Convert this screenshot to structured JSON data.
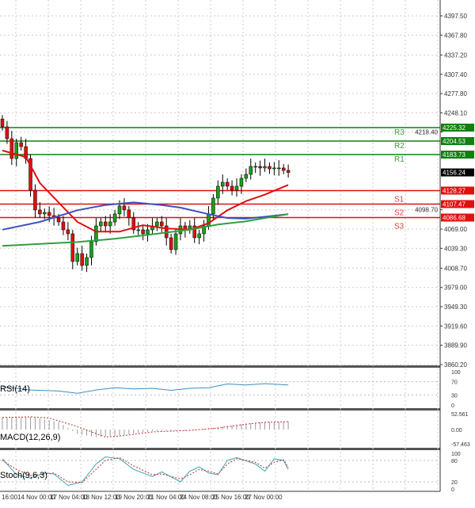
{
  "chart_data": {
    "type": "candlestick",
    "timeframe_labels": [
      "16:00",
      "14 Nov 00:00",
      "17 Nov 04:00",
      "18 Nov 12:00",
      "19 Nov 20:00",
      "21 Nov 04:00",
      "24 Nov 08:00",
      "25 Nov 16:00",
      "27 Nov 00:00"
    ],
    "price_ticks": [
      "4397.50",
      "4367.80",
      "4337.20",
      "4307.40",
      "4277.80",
      "4248.10",
      "4218.40",
      "4098.70",
      "4069.00",
      "4039.30",
      "4008.70",
      "3979.00",
      "3949.30",
      "3919.60",
      "3889.90",
      "3860.20"
    ],
    "ylim": [
      3860.2,
      4397.5
    ],
    "grid": true,
    "closes": [
      4226.6,
      4208.2,
      4177.7,
      4202.1,
      4196.0,
      4177.7,
      4128.9,
      4098.4,
      4092.3,
      4094.7,
      4089.8,
      4086.2,
      4080.0,
      4067.8,
      4061.7,
      4019.0,
      4031.2,
      4012.9,
      4025.1,
      4049.5,
      4073.9,
      4080.0,
      4073.9,
      4080.0,
      4092.3,
      4104.5,
      4098.4,
      4086.2,
      4067.8,
      4067.8,
      4061.7,
      4067.8,
      4073.9,
      4080.0,
      4073.9,
      4055.6,
      4037.3,
      4061.7,
      4073.9,
      4067.8,
      4073.9,
      4055.6,
      4061.7,
      4073.9,
      4092.3,
      4116.7,
      4135.0,
      4141.1,
      4135.0,
      4128.9,
      4135.0,
      4147.2,
      4153.3,
      4165.5,
      4165.5,
      4163.1,
      4165.5,
      4161.8,
      4163.1,
      4163.1,
      4159.4,
      4156.24
    ],
    "moving_averages": [
      {
        "color": "#e01010",
        "points": [
          [
            0,
            4190
          ],
          [
            5,
            4180
          ],
          [
            8,
            4140
          ],
          [
            12,
            4110
          ],
          [
            16,
            4080
          ],
          [
            20,
            4065
          ],
          [
            25,
            4065
          ],
          [
            30,
            4075
          ],
          [
            35,
            4070
          ],
          [
            40,
            4068
          ],
          [
            44,
            4078
          ],
          [
            48,
            4098
          ],
          [
            52,
            4112
          ],
          [
            56,
            4122
          ],
          [
            61,
            4137
          ]
        ]
      },
      {
        "color": "#4050c0",
        "points": [
          [
            0,
            4068
          ],
          [
            8,
            4080
          ],
          [
            16,
            4098
          ],
          [
            22,
            4106
          ],
          [
            28,
            4110
          ],
          [
            34,
            4106
          ],
          [
            38,
            4102
          ],
          [
            44,
            4092
          ],
          [
            48,
            4086
          ],
          [
            52,
            4085
          ],
          [
            56,
            4088
          ],
          [
            61,
            4092
          ]
        ]
      },
      {
        "color": "#30a040",
        "points": [
          [
            0,
            4043
          ],
          [
            8,
            4046
          ],
          [
            16,
            4049
          ],
          [
            24,
            4054
          ],
          [
            32,
            4061
          ],
          [
            40,
            4068
          ],
          [
            46,
            4076
          ],
          [
            52,
            4081
          ],
          [
            56,
            4086
          ],
          [
            61,
            4092
          ]
        ]
      }
    ],
    "levels": [
      {
        "name": "R3",
        "value": "4225.32",
        "color": "#108010"
      },
      {
        "name": "R2",
        "value": "4204.53",
        "color": "#108010"
      },
      {
        "name": "R1",
        "value": "4183.73",
        "color": "#108010"
      },
      {
        "name": "S1",
        "value": "4128.27",
        "color": "#e01010"
      },
      {
        "name": "S2",
        "value": "4107.47",
        "color": "#e01010"
      },
      {
        "name": "S3",
        "value": "4086.68",
        "color": "#e01010"
      }
    ],
    "current_price": "4156.24",
    "bull_color": "#18a018",
    "bear_color": "#e01010",
    "rsi": {
      "label": "RSI(14)",
      "ticks": [
        "100",
        "70",
        "30",
        "0"
      ],
      "color": "#3a8fc0",
      "points": [
        [
          0,
          55
        ],
        [
          6,
          45
        ],
        [
          12,
          42
        ],
        [
          16,
          35
        ],
        [
          20,
          45
        ],
        [
          24,
          52
        ],
        [
          28,
          48
        ],
        [
          32,
          50
        ],
        [
          36,
          44
        ],
        [
          40,
          50
        ],
        [
          44,
          52
        ],
        [
          48,
          63
        ],
        [
          52,
          60
        ],
        [
          56,
          64
        ],
        [
          61,
          60
        ]
      ]
    },
    "macd": {
      "label": "MACD(12,26,9)",
      "ticks": [
        "52.561",
        "0.00",
        "-57.463"
      ],
      "histogram": [
        [
          0,
          40
        ],
        [
          6,
          42
        ],
        [
          12,
          25
        ],
        [
          16,
          -15
        ],
        [
          20,
          -25
        ],
        [
          26,
          -18
        ],
        [
          32,
          -5
        ],
        [
          40,
          -3
        ],
        [
          46,
          8
        ],
        [
          52,
          20
        ],
        [
          56,
          25
        ],
        [
          61,
          26
        ]
      ],
      "signal": [
        [
          0,
          40
        ],
        [
          6,
          42
        ],
        [
          10,
          38
        ],
        [
          16,
          10
        ],
        [
          22,
          -25
        ],
        [
          26,
          -20
        ],
        [
          32,
          -8
        ],
        [
          40,
          -3
        ],
        [
          46,
          5
        ],
        [
          52,
          18
        ],
        [
          56,
          24
        ],
        [
          61,
          26
        ]
      ]
    },
    "stoch": {
      "label": "Stoch(9,6,3)",
      "ticks": [
        "100",
        "80",
        "20",
        "0"
      ],
      "main": [
        [
          0,
          85
        ],
        [
          3,
          40
        ],
        [
          6,
          30
        ],
        [
          9,
          45
        ],
        [
          11,
          42
        ],
        [
          14,
          10
        ],
        [
          17,
          20
        ],
        [
          20,
          70
        ],
        [
          22,
          90
        ],
        [
          25,
          85
        ],
        [
          28,
          55
        ],
        [
          32,
          35
        ],
        [
          34,
          48
        ],
        [
          38,
          20
        ],
        [
          40,
          50
        ],
        [
          42,
          62
        ],
        [
          44,
          45
        ],
        [
          46,
          40
        ],
        [
          48,
          80
        ],
        [
          50,
          88
        ],
        [
          54,
          70
        ],
        [
          56,
          50
        ],
        [
          58,
          85
        ],
        [
          60,
          80
        ],
        [
          61,
          55
        ]
      ],
      "signal": [
        [
          0,
          80
        ],
        [
          3,
          55
        ],
        [
          6,
          38
        ],
        [
          9,
          42
        ],
        [
          11,
          45
        ],
        [
          14,
          20
        ],
        [
          17,
          18
        ],
        [
          20,
          55
        ],
        [
          22,
          80
        ],
        [
          25,
          88
        ],
        [
          28,
          65
        ],
        [
          32,
          40
        ],
        [
          34,
          42
        ],
        [
          38,
          28
        ],
        [
          40,
          40
        ],
        [
          42,
          55
        ],
        [
          44,
          50
        ],
        [
          46,
          42
        ],
        [
          48,
          70
        ],
        [
          50,
          85
        ],
        [
          54,
          75
        ],
        [
          56,
          58
        ],
        [
          58,
          75
        ],
        [
          60,
          82
        ],
        [
          61,
          60
        ]
      ]
    }
  }
}
